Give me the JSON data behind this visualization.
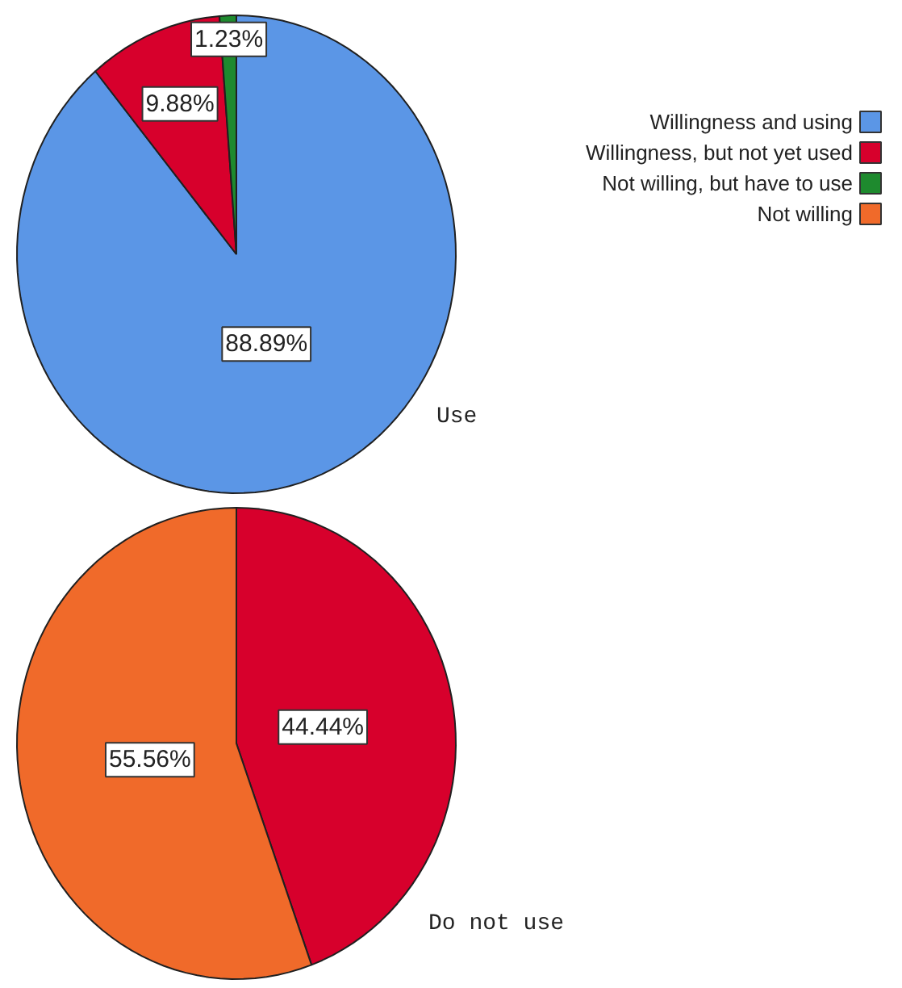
{
  "chart_data": [
    {
      "type": "pie",
      "title": "Use",
      "categories": [
        "Willingness and using",
        "Willingness, but not yet used",
        "Not willing, but have to use",
        "Not willing"
      ],
      "values": [
        88.89,
        9.88,
        1.23,
        0
      ],
      "value_labels": [
        "88.89%",
        "9.88%",
        "1.23%",
        null
      ],
      "colors": [
        "#5b96e6",
        "#d7002c",
        "#1e8a2e",
        "#f06a2a"
      ],
      "legend": "top right"
    },
    {
      "type": "pie",
      "title": "Do not use",
      "categories": [
        null,
        null
      ],
      "values": [
        44.44,
        55.56
      ],
      "value_labels": [
        "44.44%",
        "55.56%"
      ],
      "colors": [
        "#d7002c",
        "#f06a2a"
      ]
    }
  ]
}
